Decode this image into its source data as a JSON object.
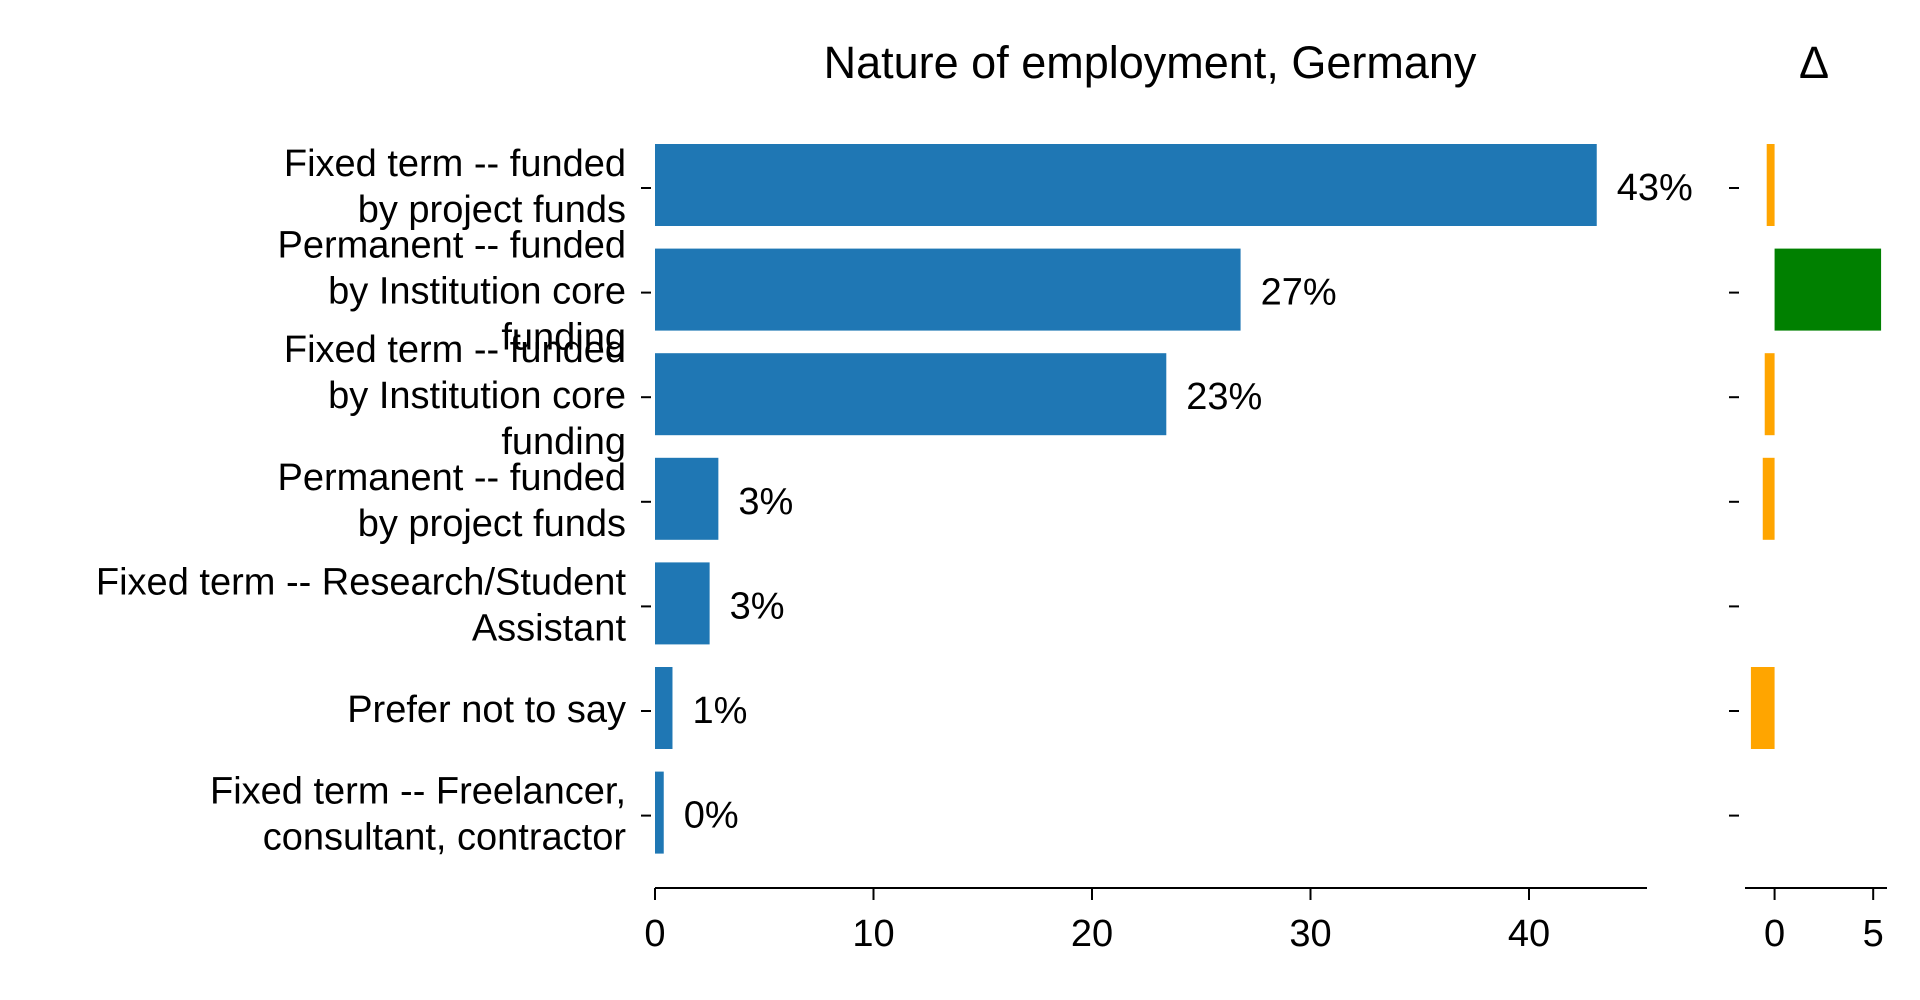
{
  "chart_data": [
    {
      "type": "bar",
      "orientation": "horizontal",
      "title": "Nature of employment, Germany",
      "categories": [
        [
          "Fixed term -- funded",
          "by project funds"
        ],
        [
          "Permanent -- funded",
          "by Institution core",
          "funding"
        ],
        [
          "Fixed term -- funded",
          "by Institution core",
          "funding"
        ],
        [
          "Permanent -- funded",
          "by project funds"
        ],
        [
          "Fixed term -- Research/Student",
          "Assistant"
        ],
        [
          "Prefer not to say"
        ],
        [
          "Fixed term -- Freelancer,",
          "consultant, contractor"
        ]
      ],
      "values": [
        43.1,
        26.8,
        23.4,
        2.9,
        2.5,
        0.8,
        0.4
      ],
      "data_labels": [
        "43%",
        "27%",
        "23%",
        "3%",
        "3%",
        "1%",
        "0%"
      ],
      "xlim": [
        0,
        45.4
      ],
      "xticks": [
        0,
        10,
        20,
        30,
        40
      ],
      "xtick_labels": [
        "0",
        "10",
        "20",
        "30",
        "40"
      ],
      "color": "#1f77b4",
      "grid": false
    },
    {
      "type": "bar",
      "orientation": "horizontal",
      "title": "Δ",
      "values": [
        -0.4,
        5.4,
        -0.5,
        -0.6,
        0,
        -1.2,
        0
      ],
      "colors": {
        "positive": "#008000",
        "negative": "#ffa500"
      },
      "xlim": [
        -1.5,
        5.7
      ],
      "xticks": [
        0,
        5
      ],
      "xtick_labels": [
        "0",
        "5"
      ],
      "grid": false
    }
  ]
}
